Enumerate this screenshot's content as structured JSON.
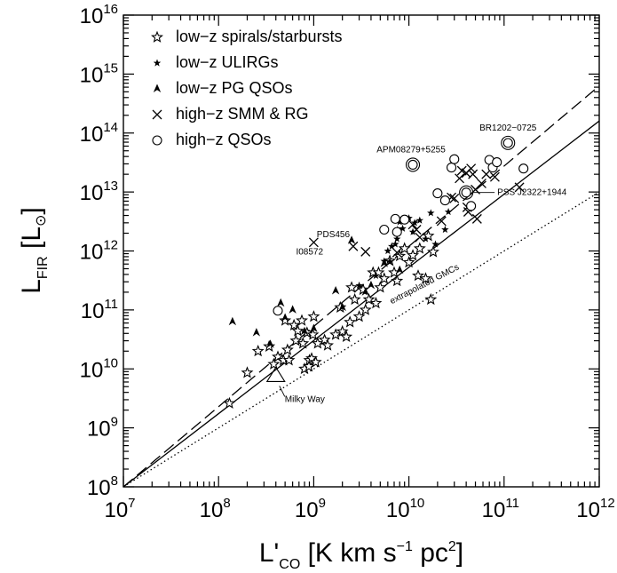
{
  "chart_data": {
    "type": "scatter",
    "xlabel": "L'CO [K km s⁻¹ pc²]",
    "ylabel": "LFIR [L⊙]",
    "x_scale": "log",
    "y_scale": "log",
    "xlim": [
      10000000.0,
      1000000000000.0
    ],
    "ylim": [
      100000000.0,
      1e+16
    ],
    "x_ticks": [
      10000000.0,
      100000000.0,
      1000000000.0,
      10000000000.0,
      100000000000.0,
      1000000000000.0
    ],
    "y_ticks": [
      100000000.0,
      1000000000.0,
      10000000000.0,
      100000000000.0,
      1000000000000.0,
      10000000000000.0,
      100000000000000.0,
      1000000000000000.0,
      1e+16
    ],
    "x_tick_labels": [
      "10",
      "10",
      "10",
      "10",
      "10",
      "10"
    ],
    "x_tick_exponents": [
      "7",
      "8",
      "9",
      "10",
      "11",
      "12"
    ],
    "y_tick_labels": [
      "10",
      "10",
      "10",
      "10",
      "10",
      "10",
      "10",
      "10",
      "10"
    ],
    "y_tick_exponents": [
      "8",
      "9",
      "10",
      "11",
      "12",
      "13",
      "14",
      "15",
      "16"
    ],
    "axis_label_x": {
      "main": "L'",
      "sub": "CO",
      "unit_open": " [K km s",
      "unit_exp": "−1",
      "unit_mid": " pc",
      "unit_exp2": "2",
      "unit_close": "]"
    },
    "axis_label_y": {
      "main": "L",
      "sub": "FIR",
      "unit_open": " [L",
      "unit_sub": "⊙",
      "unit_close": "]"
    },
    "legend_position": "top-left",
    "legend": [
      {
        "marker": "star",
        "label": "low−z spirals/starbursts"
      },
      {
        "marker": "asterisk",
        "label": "low−z ULIRGs"
      },
      {
        "marker": "tri",
        "label": "low−z PG QSOs"
      },
      {
        "marker": "cross",
        "label": "high−z SMM & RG"
      },
      {
        "marker": "circle",
        "label": "high−z QSOs"
      }
    ],
    "lines": [
      {
        "style": "solid",
        "x": [
          10000000.0,
          1000000000000.0
        ],
        "y": [
          100000000.0,
          160000000000000.0
        ]
      },
      {
        "style": "dashed",
        "x": [
          10000000.0,
          1000000000000.0
        ],
        "y": [
          100000000.0,
          630000000000000.0
        ]
      },
      {
        "style": "dotted",
        "x": [
          10000000.0,
          1000000000000.0
        ],
        "y": [
          100000000.0,
          10000000000000.0
        ]
      }
    ],
    "annotations": [
      {
        "text": "APM08279+5255",
        "x": 11000000000.0,
        "y": 29000000000000.0
      },
      {
        "text": "BR1202−0725",
        "x": 110000000000.0,
        "y": 68000000000000.0
      },
      {
        "text": "PSS J2322+1944",
        "x": 40000000000.0,
        "y": 9800000000000.0
      },
      {
        "text": "PDS456",
        "x": 2500000000.0,
        "y": 1500000000000.0
      },
      {
        "text": "I08572",
        "x": 1400000000.0,
        "y": 1000000000000.0
      },
      {
        "text": "Milky Way",
        "x": 400000000.0,
        "y": 7800000000.0
      },
      {
        "text": "extrapolated GMCs",
        "x": 15000000000.0,
        "y": 250000000000.0
      }
    ],
    "series": [
      {
        "name": "low−z spirals/starbursts",
        "marker": "star",
        "points": [
          [
            130000000.0,
            2600000000.0
          ],
          [
            200000000.0,
            8600000000.0
          ],
          [
            260000000.0,
            20000000000.0
          ],
          [
            340000000.0,
            24000000000.0
          ],
          [
            380000000.0,
            12000000000.0
          ],
          [
            420000000.0,
            16000000000.0
          ],
          [
            480000000.0,
            14000000000.0
          ],
          [
            500000000.0,
            66000000000.0
          ],
          [
            530000000.0,
            21000000000.0
          ],
          [
            550000000.0,
            14000000000.0
          ],
          [
            620000000.0,
            55000000000.0
          ],
          [
            650000000.0,
            30000000000.0
          ],
          [
            680000000.0,
            44000000000.0
          ],
          [
            750000000.0,
            66000000000.0
          ],
          [
            770000000.0,
            27000000000.0
          ],
          [
            800000000.0,
            10000000000.0
          ],
          [
            850000000.0,
            41000000000.0
          ],
          [
            890000000.0,
            11000000000.0
          ],
          [
            900000000.0,
            14000000000.0
          ],
          [
            950000000.0,
            15000000000.0
          ],
          [
            980000000.0,
            38000000000.0
          ],
          [
            1000000000.0,
            77000000000.0
          ],
          [
            1050000000.0,
            13000000000.0
          ],
          [
            1100000000.0,
            27000000000.0
          ],
          [
            1300000000.0,
            31000000000.0
          ],
          [
            1400000000.0,
            25000000000.0
          ],
          [
            1700000000.0,
            38000000000.0
          ],
          [
            1900000000.0,
            110000000000.0
          ],
          [
            2000000000.0,
            43000000000.0
          ],
          [
            2200000000.0,
            35000000000.0
          ],
          [
            2400000000.0,
            62000000000.0
          ],
          [
            2500000000.0,
            240000000000.0
          ],
          [
            2700000000.0,
            150000000000.0
          ],
          [
            3000000000.0,
            77000000000.0
          ],
          [
            3300000000.0,
            220000000000.0
          ],
          [
            3500000000.0,
            100000000000.0
          ],
          [
            3800000000.0,
            150000000000.0
          ],
          [
            4200000000.0,
            430000000000.0
          ],
          [
            4500000000.0,
            130000000000.0
          ],
          [
            4800000000.0,
            430000000000.0
          ],
          [
            5000000000.0,
            240000000000.0
          ],
          [
            5500000000.0,
            340000000000.0
          ],
          [
            6300000000.0,
            680000000000.0
          ],
          [
            7000000000.0,
            430000000000.0
          ],
          [
            7500000000.0,
            310000000000.0
          ],
          [
            8000000000.0,
            820000000000.0
          ],
          [
            9000000000.0,
            1100000000000.0
          ],
          [
            10000000000.0,
            640000000000.0
          ],
          [
            11000000000.0,
            840000000000.0
          ],
          [
            12500000000.0,
            380000000000.0
          ],
          [
            13000000000.0,
            1100000000000.0
          ],
          [
            15000000000.0,
            340000000000.0
          ],
          [
            16000000000.0,
            1800000000000.0
          ],
          [
            17000000000.0,
            150000000000.0
          ],
          [
            18000000000.0,
            960000000000.0
          ]
        ]
      },
      {
        "name": "low−z ULIRGs",
        "marker": "asterisk",
        "points": [
          [
            3000000000.0,
            260000000000.0
          ],
          [
            4500000000.0,
            380000000000.0
          ],
          [
            5500000000.0,
            670000000000.0
          ],
          [
            6000000000.0,
            1000000000000.0
          ],
          [
            6300000000.0,
            660000000000.0
          ],
          [
            6600000000.0,
            1200000000000.0
          ],
          [
            7200000000.0,
            1300000000000.0
          ],
          [
            7500000000.0,
            1600000000000.0
          ],
          [
            7600000000.0,
            2300000000000.0
          ],
          [
            8000000000.0,
            3100000000000.0
          ],
          [
            8600000000.0,
            2400000000000.0
          ],
          [
            10000000000.0,
            3600000000000.0
          ],
          [
            11000000000.0,
            2100000000000.0
          ],
          [
            11500000000.0,
            3000000000000.0
          ],
          [
            13000000000.0,
            3300000000000.0
          ],
          [
            15000000000.0,
            1600000000000.0
          ],
          [
            17000000000.0,
            4400000000000.0
          ],
          [
            19000000000.0,
            1300000000000.0
          ],
          [
            24000000000.0,
            2300000000000.0
          ],
          [
            26000000000.0,
            4600000000000.0
          ]
        ]
      },
      {
        "name": "low−z PG QSOs",
        "marker": "tri",
        "points": [
          [
            140000000.0,
            63000000000.0
          ],
          [
            250000000.0,
            41000000000.0
          ],
          [
            350000000.0,
            26000000000.0
          ],
          [
            450000000.0,
            130000000000.0
          ],
          [
            500000000.0,
            73000000000.0
          ],
          [
            600000000.0,
            100000000000.0
          ],
          [
            800000000.0,
            43000000000.0
          ],
          [
            1000000000.0,
            48000000000.0
          ],
          [
            1700000000.0,
            210000000000.0
          ],
          [
            2000000000.0,
            110000000000.0
          ],
          [
            2500000000.0,
            1500000000000.0
          ],
          [
            3500000000.0,
            200000000000.0
          ],
          [
            4000000000.0,
            260000000000.0
          ],
          [
            5500000000.0,
            610000000000.0
          ],
          [
            8000000000.0,
            470000000000.0
          ]
        ]
      },
      {
        "name": "high−z SMM & RG",
        "marker": "cross",
        "points": [
          [
            1000000000.0,
            1400000000000.0
          ],
          [
            2600000000.0,
            1200000000000.0
          ],
          [
            3500000000.0,
            970000000000.0
          ],
          [
            7500000000.0,
            940000000000.0
          ],
          [
            11000000000.0,
            2800000000000.0
          ],
          [
            12000000000.0,
            2300000000000.0
          ],
          [
            13000000000.0,
            1700000000000.0
          ],
          [
            22000000000.0,
            3200000000000.0
          ],
          [
            28000000000.0,
            8100000000000.0
          ],
          [
            30000000000.0,
            7800000000000.0
          ],
          [
            34000000000.0,
            17000000000000.0
          ],
          [
            36000000000.0,
            23000000000000.0
          ],
          [
            40000000000.0,
            21000000000000.0
          ],
          [
            41000000000.0,
            5500000000000.0
          ],
          [
            42000000000.0,
            4600000000000.0
          ],
          [
            45000000000.0,
            25000000000000.0
          ],
          [
            47000000000.0,
            20000000000000.0
          ],
          [
            50000000000.0,
            11000000000000.0
          ],
          [
            52000000000.0,
            3500000000000.0
          ],
          [
            58000000000.0,
            14000000000000.0
          ],
          [
            65000000000.0,
            20000000000000.0
          ],
          [
            80000000000.0,
            18000000000000.0
          ],
          [
            145000000000.0,
            12000000000000.0
          ]
        ]
      },
      {
        "name": "high−z QSOs",
        "marker": "circle",
        "points": [
          [
            420000000.0,
            97000000000.0
          ],
          [
            5500000000.0,
            2300000000000.0
          ],
          [
            7200000000.0,
            3500000000000.0
          ],
          [
            7500000000.0,
            2100000000000.0
          ],
          [
            9000000000.0,
            3400000000000.0
          ],
          [
            11000000000.0,
            29000000000000.0
          ],
          [
            20000000000.0,
            9500000000000.0
          ],
          [
            24000000000.0,
            7200000000000.0
          ],
          [
            28000000000.0,
            26000000000000.0
          ],
          [
            30000000000.0,
            36000000000000.0
          ],
          [
            40000000000.0,
            9800000000000.0
          ],
          [
            45000000000.0,
            5800000000000.0
          ],
          [
            70000000000.0,
            35000000000000.0
          ],
          [
            76000000000.0,
            26000000000000.0
          ],
          [
            84000000000.0,
            32000000000000.0
          ],
          [
            110000000000.0,
            68000000000000.0
          ],
          [
            160000000000.0,
            25000000000000.0
          ]
        ]
      },
      {
        "name": "",
        "marker": "open-triangle",
        "points": [
          [
            400000000.0,
            7800000000.0
          ]
        ]
      }
    ]
  }
}
